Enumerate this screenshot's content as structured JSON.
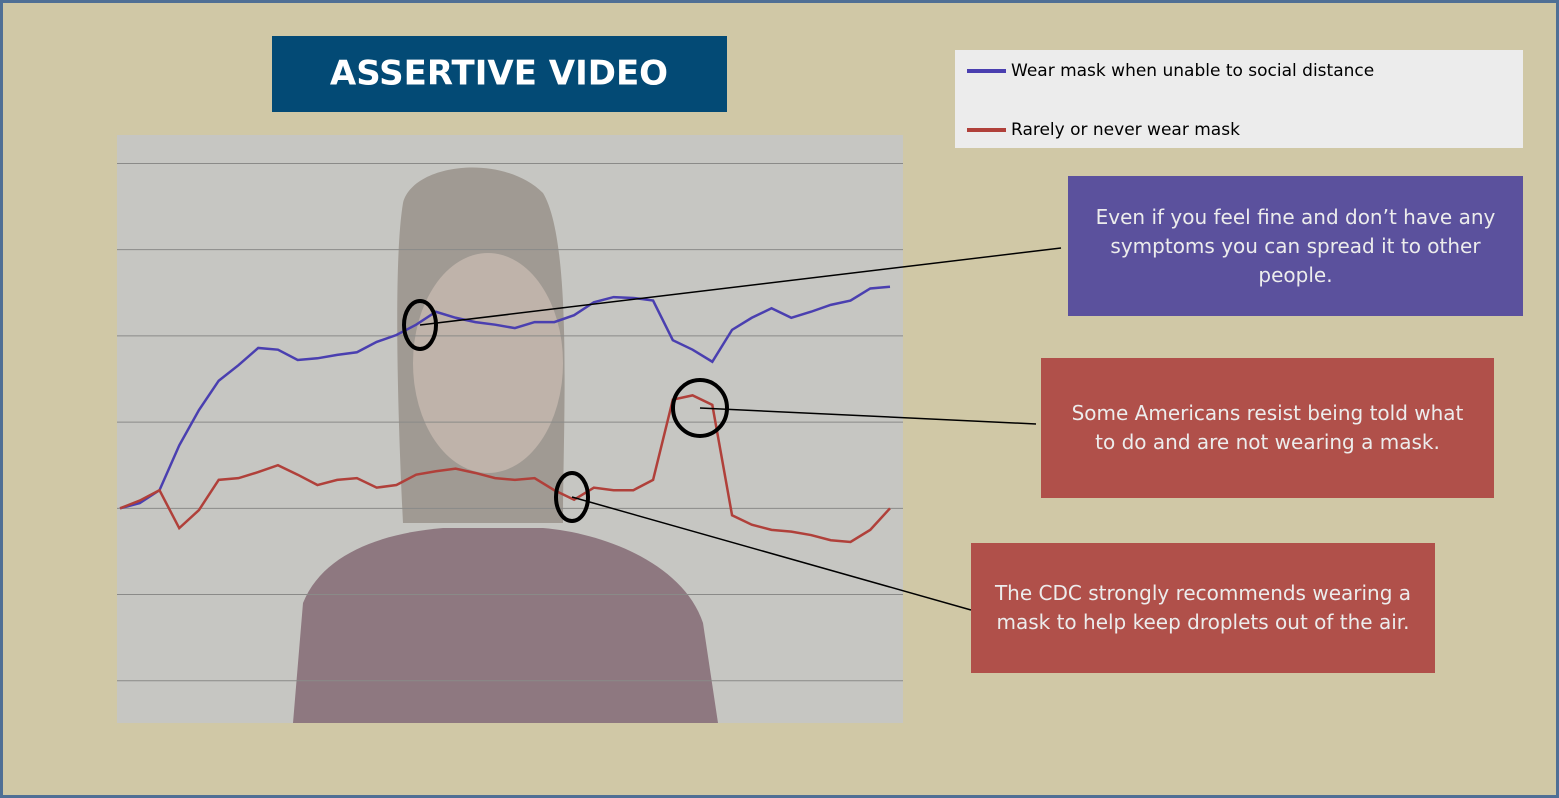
{
  "chart_data": {
    "type": "line",
    "title": "ASSERTIVE VIDEO",
    "series": [
      {
        "name": "Wear mask when unable to social distance",
        "color": "#4a3fb0",
        "values": [
          2.0,
          2.06,
          2.21,
          2.73,
          3.14,
          3.48,
          3.66,
          3.86,
          3.84,
          3.72,
          3.74,
          3.78,
          3.81,
          3.93,
          4.01,
          4.13,
          4.28,
          4.21,
          4.16,
          4.13,
          4.09,
          4.16,
          4.16,
          4.24,
          4.39,
          4.45,
          4.44,
          4.41,
          3.95,
          3.84,
          3.7,
          4.07,
          4.21,
          4.32,
          4.21,
          4.28,
          4.36,
          4.41,
          4.55,
          4.57
        ]
      },
      {
        "name": "Rarely or never wear mask",
        "color": "#b0403a",
        "values": [
          2.0,
          2.09,
          2.21,
          1.77,
          1.98,
          2.33,
          2.35,
          2.42,
          2.5,
          2.39,
          2.27,
          2.33,
          2.35,
          2.24,
          2.27,
          2.39,
          2.43,
          2.46,
          2.41,
          2.35,
          2.33,
          2.35,
          2.21,
          2.1,
          2.24,
          2.21,
          2.21,
          2.33,
          3.26,
          3.31,
          3.2,
          1.92,
          1.81,
          1.75,
          1.73,
          1.69,
          1.63,
          1.61,
          1.75,
          2.0
        ]
      }
    ],
    "ylim": [
      -0.49,
      6.33
    ],
    "yticks": [
      0,
      1,
      2,
      3,
      4,
      5,
      6
    ],
    "grid": true,
    "annotations": [
      "Even if you feel fine and don’t have any symptoms you can spread it to other people.",
      "Some Americans resist being told what to do and are not wearing a mask.",
      "The CDC strongly recommends wearing a mask to help keep droplets out of the air."
    ]
  }
}
